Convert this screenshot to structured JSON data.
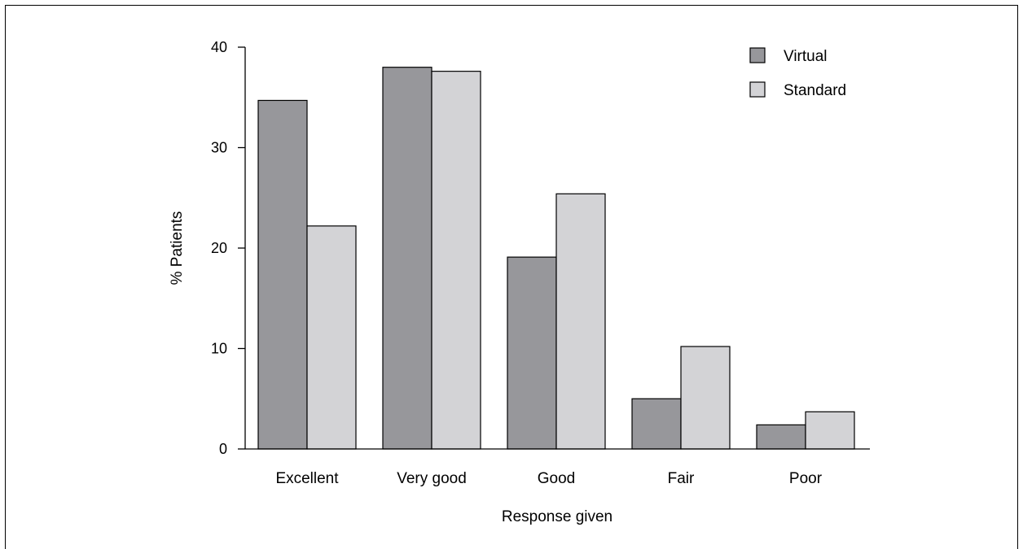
{
  "chart_data": {
    "type": "bar",
    "categories": [
      "Excellent",
      "Very good",
      "Good",
      "Fair",
      "Poor"
    ],
    "series": [
      {
        "name": "Virtual",
        "values": [
          34.7,
          38.0,
          19.1,
          5.0,
          2.4
        ]
      },
      {
        "name": "Standard",
        "values": [
          22.2,
          37.6,
          25.4,
          10.2,
          3.7
        ]
      }
    ],
    "title": "",
    "xlabel": "Response given",
    "ylabel": "% Patients",
    "ylim": [
      0,
      40
    ],
    "yticks": [
      "0",
      "10",
      "20",
      "30",
      "40"
    ],
    "grid": false,
    "legend_position": "top-right",
    "colors": {
      "Virtual": "#97979b",
      "Standard": "#d3d3d6",
      "stroke": "#000000"
    }
  }
}
